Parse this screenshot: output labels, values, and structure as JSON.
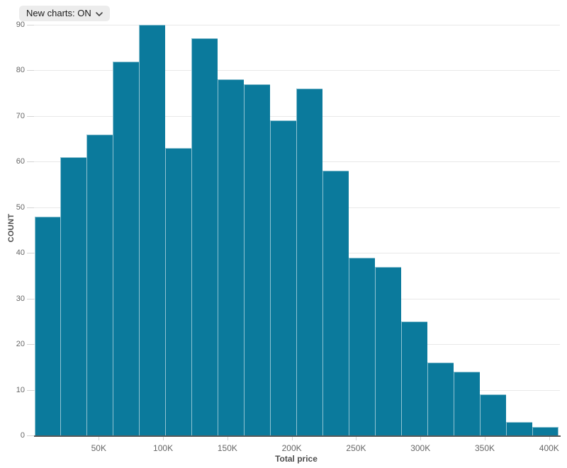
{
  "toolbar": {
    "new_charts_label": "New charts: ON",
    "chevron_icon": "chevron-down"
  },
  "colors": {
    "bar_fill": "#0b7a9c",
    "bar_stroke": "rgba(255,255,255,0.55)",
    "gridline": "#e8e8e8",
    "tick_mark": "#d4d4d4",
    "axis_line": "#595959",
    "tick_label": "#666666",
    "axis_title": "#4d4d4d",
    "control_bg": "#ececec",
    "control_text": "#1c1c1c"
  },
  "chart_data": {
    "type": "bar",
    "subtype": "histogram",
    "title": "",
    "xlabel": "Total price",
    "ylabel": "COUNT",
    "ylim": [
      0,
      90
    ],
    "y_ticks": [
      0,
      10,
      20,
      30,
      40,
      50,
      60,
      70,
      80,
      90
    ],
    "x_ticks": [
      {
        "value": 50000,
        "label": "50K"
      },
      {
        "value": 100000,
        "label": "100K"
      },
      {
        "value": 150000,
        "label": "150K"
      },
      {
        "value": 200000,
        "label": "200K"
      },
      {
        "value": 250000,
        "label": "250K"
      },
      {
        "value": 300000,
        "label": "300K"
      },
      {
        "value": 350000,
        "label": "350K"
      },
      {
        "value": 400000,
        "label": "400K"
      }
    ],
    "bin_width": 20000,
    "bin_starts": [
      0,
      20000,
      40000,
      60000,
      80000,
      100000,
      120000,
      140000,
      160000,
      180000,
      200000,
      220000,
      240000,
      260000,
      280000,
      300000,
      320000,
      340000,
      360000,
      380000
    ],
    "counts": [
      48,
      61,
      66,
      82,
      90,
      63,
      87,
      78,
      77,
      69,
      76,
      58,
      39,
      37,
      25,
      16,
      14,
      9,
      3,
      2
    ],
    "grid": "horizontal",
    "legend": "none"
  }
}
